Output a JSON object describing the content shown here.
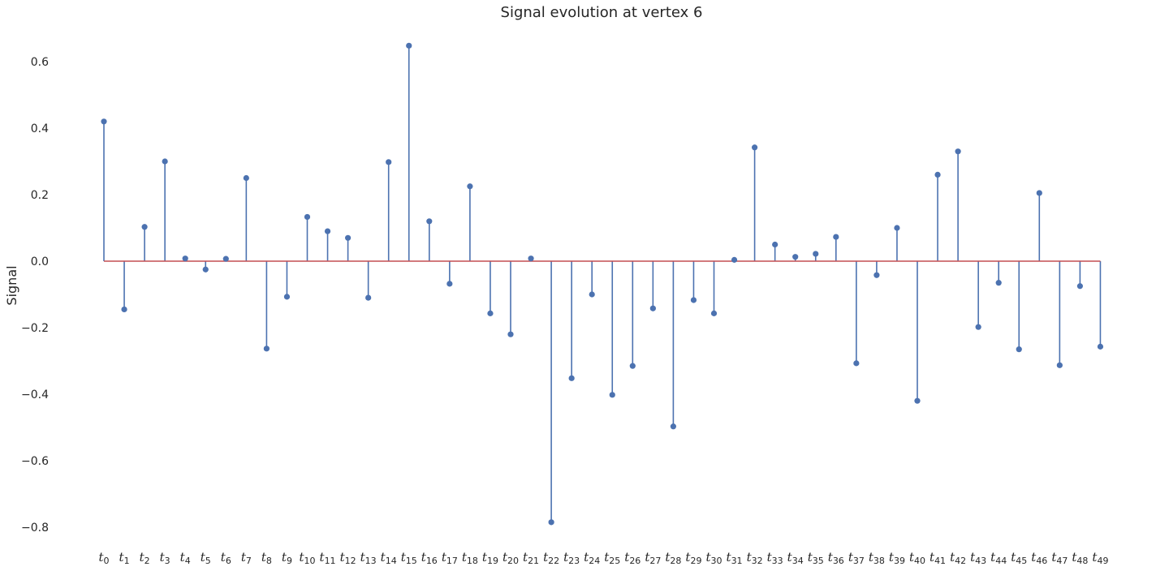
{
  "chart_data": {
    "type": "stem",
    "title": "Signal evolution at vertex 6",
    "xlabel": "",
    "ylabel": "Signal",
    "ylim": [
      -0.88,
      0.72
    ],
    "yticks": [
      -0.8,
      -0.6,
      -0.4,
      -0.2,
      0.0,
      0.2,
      0.4,
      0.6
    ],
    "ytick_labels": [
      "−0.8",
      "−0.6",
      "−0.4",
      "−0.2",
      "0.0",
      "0.2",
      "0.4",
      "0.6"
    ],
    "categories": [
      "t0",
      "t1",
      "t2",
      "t3",
      "t4",
      "t5",
      "t6",
      "t7",
      "t8",
      "t9",
      "t10",
      "t11",
      "t12",
      "t13",
      "t14",
      "t15",
      "t16",
      "t17",
      "t18",
      "t19",
      "t20",
      "t21",
      "t22",
      "t23",
      "t24",
      "t25",
      "t26",
      "t27",
      "t28",
      "t29",
      "t30",
      "t31",
      "t32",
      "t33",
      "t34",
      "t35",
      "t36",
      "t37",
      "t38",
      "t39",
      "t40",
      "t41",
      "t42",
      "t43",
      "t44",
      "t45",
      "t46",
      "t47",
      "t48",
      "t49"
    ],
    "tick_base": "t",
    "tick_subscripts": [
      "0",
      "1",
      "2",
      "3",
      "4",
      "5",
      "6",
      "7",
      "8",
      "9",
      "10",
      "11",
      "12",
      "13",
      "14",
      "15",
      "16",
      "17",
      "18",
      "19",
      "20",
      "21",
      "22",
      "23",
      "24",
      "25",
      "26",
      "27",
      "28",
      "29",
      "30",
      "31",
      "32",
      "33",
      "34",
      "35",
      "36",
      "37",
      "38",
      "39",
      "40",
      "41",
      "42",
      "43",
      "44",
      "45",
      "46",
      "47",
      "48",
      "49"
    ],
    "values": [
      0.42,
      -0.145,
      0.103,
      0.3,
      0.008,
      -0.025,
      0.007,
      0.25,
      -0.263,
      -0.107,
      0.133,
      0.09,
      0.07,
      -0.11,
      0.298,
      0.648,
      0.12,
      -0.068,
      0.225,
      -0.157,
      -0.22,
      0.008,
      -0.785,
      -0.352,
      -0.1,
      -0.402,
      -0.315,
      -0.142,
      -0.497,
      -0.117,
      -0.157,
      0.004,
      0.342,
      0.05,
      0.013,
      0.022,
      0.073,
      -0.307,
      -0.042,
      0.1,
      -0.42,
      0.26,
      0.33,
      -0.198,
      -0.065,
      -0.265,
      0.205,
      -0.313,
      -0.075,
      -0.257
    ],
    "grid": false,
    "colors": {
      "stem": "#4c72b0",
      "baseline": "#c44e52",
      "text": "#262626"
    }
  }
}
